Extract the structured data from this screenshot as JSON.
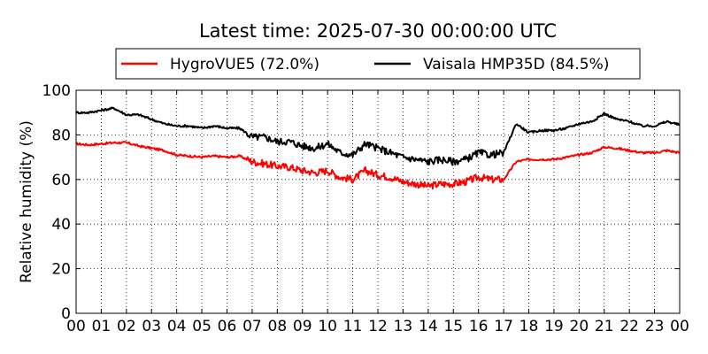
{
  "chart_data": {
    "type": "line",
    "title": "Latest time: 2025-07-30 00:00:00 UTC",
    "xlabel": "",
    "ylabel": "Relative humidity (%)",
    "ylim": [
      0,
      100
    ],
    "yticks": [
      "0",
      "20",
      "40",
      "60",
      "80",
      "100"
    ],
    "xlim": [
      0,
      24
    ],
    "xticks": [
      "00",
      "01",
      "02",
      "03",
      "04",
      "05",
      "06",
      "07",
      "08",
      "09",
      "10",
      "11",
      "12",
      "13",
      "14",
      "15",
      "16",
      "17",
      "18",
      "19",
      "20",
      "21",
      "22",
      "23",
      "00"
    ],
    "grid": true,
    "legend_position": "top-center",
    "x_unit": "hour",
    "series": [
      {
        "name": "HygroVUE5 (72.0%)",
        "color": "#ff0000",
        "x": [
          0,
          0.5,
          1,
          1.5,
          2,
          2.5,
          3,
          3.5,
          4,
          4.5,
          5,
          5.5,
          6,
          6.5,
          7,
          7.5,
          8,
          8.5,
          9,
          9.5,
          10,
          10.5,
          11,
          11.5,
          12,
          12.5,
          13,
          13.5,
          14,
          14.5,
          15,
          15.5,
          16,
          16.5,
          17,
          17.5,
          18,
          18.5,
          19,
          19.5,
          20,
          20.5,
          21,
          21.5,
          22,
          22.5,
          23,
          23.5,
          24
        ],
        "values": [
          76,
          75.5,
          76,
          76.5,
          76.5,
          75,
          74,
          73,
          71,
          70.5,
          70,
          70.5,
          70,
          70.5,
          68,
          67,
          66,
          65.5,
          64,
          63,
          64,
          61,
          60,
          64,
          62,
          61,
          59,
          58,
          57,
          58,
          58,
          59,
          61,
          60,
          60,
          68,
          69,
          69,
          69,
          70,
          71,
          72,
          74.5,
          74,
          73,
          72,
          72,
          73,
          72
        ]
      },
      {
        "name": "Vaisala HMP35D (84.5%)",
        "color": "#000000",
        "x": [
          0,
          0.5,
          1,
          1.5,
          2,
          2.5,
          3,
          3.5,
          4,
          4.5,
          5,
          5.5,
          6,
          6.5,
          7,
          7.5,
          8,
          8.5,
          9,
          9.5,
          10,
          10.5,
          11,
          11.5,
          12,
          12.5,
          13,
          13.5,
          14,
          14.5,
          15,
          15.5,
          16,
          16.5,
          17,
          17.5,
          18,
          18.5,
          19,
          19.5,
          20,
          20.5,
          21,
          21.5,
          22,
          22.5,
          23,
          23.5,
          24
        ],
        "values": [
          90,
          90,
          91,
          92,
          89,
          89,
          87,
          85,
          84,
          84,
          83,
          84,
          83,
          83,
          79,
          79,
          77,
          77,
          75,
          74,
          76,
          72,
          71,
          76,
          74,
          72,
          70,
          69,
          68,
          69,
          68,
          69,
          72,
          71,
          72,
          85,
          81,
          82,
          82,
          83,
          85,
          86,
          89.5,
          87,
          86,
          84,
          84,
          86,
          84.5
        ]
      }
    ]
  }
}
